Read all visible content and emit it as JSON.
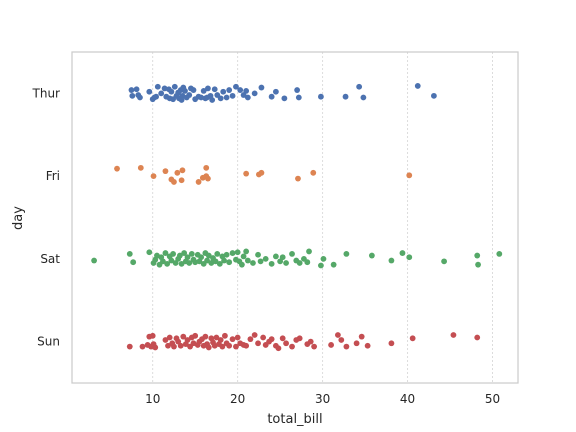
{
  "chart_data": {
    "type": "scatter",
    "subtype": "strip",
    "xlabel": "total_bill",
    "ylabel": "day",
    "xlim": [
      0.5,
      53
    ],
    "xticks": [
      10,
      20,
      30,
      40,
      50
    ],
    "grid": "x",
    "categories": [
      "Thur",
      "Fri",
      "Sat",
      "Sun"
    ],
    "series": [
      {
        "category": "Thur",
        "color": "#4c72b0",
        "x": [
          7.5,
          7.6,
          8.1,
          8.3,
          8.5,
          9.6,
          10.0,
          10.2,
          10.4,
          10.6,
          11.0,
          11.4,
          11.6,
          11.9,
          12.0,
          12.2,
          12.4,
          12.6,
          12.8,
          13.0,
          13.1,
          13.3,
          13.4,
          13.5,
          13.6,
          13.8,
          14.0,
          14.3,
          14.5,
          14.8,
          15.0,
          15.4,
          15.7,
          16.0,
          16.2,
          16.4,
          16.5,
          16.8,
          17.0,
          17.3,
          17.6,
          18.0,
          18.3,
          18.7,
          19.0,
          19.4,
          19.8,
          20.3,
          20.7,
          21.0,
          21.2,
          22.0,
          22.8,
          24.0,
          24.5,
          25.5,
          27.0,
          27.2,
          29.8,
          32.7,
          34.3,
          34.8,
          41.2,
          43.1
        ],
        "offsets": [
          -0.04,
          0.03,
          -0.05,
          0.02,
          0.05,
          -0.02,
          0.07,
          0.05,
          0.04,
          -0.08,
          0.0,
          -0.06,
          0.04,
          -0.05,
          0.06,
          -0.02,
          0.07,
          -0.08,
          0.03,
          -0.01,
          0.06,
          -0.04,
          0.08,
          0.03,
          -0.07,
          -0.03,
          0.05,
          0.02,
          -0.06,
          -0.04,
          0.07,
          0.04,
          0.05,
          -0.03,
          0.06,
          0.05,
          -0.06,
          0.03,
          0.08,
          -0.05,
          0.02,
          0.06,
          -0.02,
          0.05,
          -0.04,
          0.03,
          -0.08,
          -0.04,
          0.02,
          -0.03,
          0.05,
          0.0,
          -0.07,
          0.04,
          -0.02,
          0.06,
          -0.04,
          0.05,
          0.04,
          0.04,
          -0.08,
          0.05,
          -0.09,
          0.03
        ]
      },
      {
        "category": "Fri",
        "color": "#dd8452",
        "x": [
          5.8,
          8.6,
          10.1,
          11.5,
          12.2,
          12.5,
          12.9,
          13.4,
          13.5,
          15.4,
          15.9,
          16.3,
          16.3,
          16.5,
          21.0,
          22.5,
          22.8,
          27.1,
          28.9,
          40.2
        ],
        "offsets": [
          -0.09,
          -0.1,
          0.0,
          -0.06,
          0.04,
          0.07,
          -0.04,
          0.05,
          -0.07,
          0.07,
          0.02,
          -0.1,
          0.0,
          0.03,
          -0.03,
          -0.02,
          -0.04,
          0.03,
          -0.04,
          -0.01
        ]
      },
      {
        "category": "Sat",
        "color": "#55a868",
        "x": [
          3.1,
          7.3,
          7.7,
          9.6,
          10.1,
          10.3,
          10.5,
          10.8,
          11.0,
          11.2,
          11.5,
          11.7,
          12.0,
          12.2,
          12.4,
          12.7,
          13.0,
          13.2,
          13.4,
          13.7,
          13.9,
          14.1,
          14.3,
          14.6,
          14.8,
          15.0,
          15.3,
          15.5,
          15.7,
          16.0,
          16.2,
          16.4,
          16.6,
          16.9,
          17.1,
          17.4,
          17.6,
          17.9,
          18.2,
          18.4,
          18.7,
          19.0,
          19.4,
          19.8,
          20.0,
          20.2,
          20.5,
          20.7,
          21.0,
          21.2,
          21.8,
          22.4,
          22.7,
          23.3,
          24.0,
          24.5,
          25.0,
          25.3,
          25.7,
          26.4,
          26.9,
          27.3,
          27.8,
          28.2,
          28.4,
          29.8,
          30.1,
          31.3,
          32.8,
          35.8,
          38.1,
          39.4,
          40.2,
          44.3,
          48.2,
          48.3,
          50.8
        ],
        "offsets": [
          0.02,
          -0.06,
          0.04,
          -0.08,
          0.05,
          0.01,
          -0.04,
          0.07,
          -0.02,
          0.03,
          -0.07,
          0.06,
          -0.03,
          0.02,
          -0.06,
          0.05,
          0.0,
          -0.04,
          0.06,
          -0.07,
          0.03,
          -0.02,
          0.05,
          -0.06,
          0.01,
          0.04,
          -0.05,
          0.03,
          -0.02,
          0.06,
          -0.07,
          0.02,
          -0.04,
          0.05,
          -0.01,
          0.03,
          -0.06,
          0.06,
          -0.03,
          0.02,
          -0.05,
          0.04,
          -0.07,
          0.01,
          -0.08,
          0.03,
          0.07,
          -0.03,
          -0.09,
          0.02,
          0.05,
          -0.05,
          0.03,
          0.0,
          0.06,
          -0.03,
          0.03,
          -0.02,
          0.05,
          -0.06,
          0.02,
          0.05,
          0.0,
          0.04,
          -0.09,
          0.08,
          0.0,
          0.07,
          -0.06,
          -0.04,
          0.02,
          -0.07,
          -0.02,
          0.03,
          -0.04,
          0.07,
          -0.06
        ]
      },
      {
        "category": "Sun",
        "color": "#c44e52",
        "x": [
          7.3,
          8.8,
          9.4,
          9.6,
          9.8,
          10.0,
          10.1,
          10.3,
          11.5,
          11.8,
          12.0,
          12.3,
          12.5,
          12.8,
          13.0,
          13.3,
          13.6,
          13.9,
          14.1,
          14.4,
          14.6,
          14.8,
          15.0,
          15.3,
          15.5,
          15.8,
          16.0,
          16.2,
          16.4,
          16.6,
          16.9,
          17.1,
          17.3,
          17.5,
          17.8,
          18.0,
          18.2,
          18.5,
          18.7,
          19.0,
          19.4,
          19.8,
          20.0,
          20.3,
          20.7,
          21.0,
          21.5,
          22.0,
          22.4,
          23.0,
          23.3,
          23.7,
          24.0,
          24.5,
          24.8,
          25.3,
          25.7,
          26.4,
          26.9,
          27.3,
          28.2,
          28.6,
          29.0,
          31.0,
          31.8,
          32.2,
          32.8,
          34.0,
          34.6,
          35.3,
          38.1,
          40.6,
          45.4,
          48.2
        ],
        "offsets": [
          0.06,
          0.06,
          0.04,
          -0.06,
          0.06,
          -0.07,
          0.03,
          0.07,
          -0.02,
          0.05,
          -0.05,
          0.02,
          0.06,
          -0.04,
          0.0,
          0.05,
          -0.06,
          0.03,
          -0.02,
          0.06,
          -0.05,
          0.02,
          -0.07,
          0.04,
          0.0,
          -0.03,
          0.05,
          -0.06,
          0.03,
          0.07,
          -0.04,
          0.01,
          0.05,
          -0.05,
          0.03,
          -0.02,
          0.06,
          -0.07,
          0.02,
          0.05,
          -0.03,
          0.06,
          -0.05,
          0.02,
          0.04,
          0.05,
          -0.03,
          -0.08,
          0.02,
          -0.05,
          0.04,
          0.0,
          -0.03,
          0.05,
          0.08,
          -0.04,
          0.02,
          0.06,
          -0.02,
          -0.04,
          0.03,
          0.0,
          0.06,
          0.04,
          -0.08,
          -0.02,
          0.06,
          0.02,
          -0.06,
          0.05,
          0.02,
          -0.04,
          -0.08,
          -0.05
        ]
      }
    ]
  }
}
